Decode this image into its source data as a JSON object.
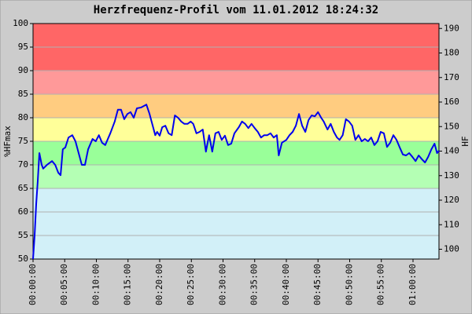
{
  "chart_data": {
    "type": "line",
    "title": "Herzfrequenz-Profil vom 11.01.2012 18:24:32",
    "ylabel": "%HFmax",
    "y2label": "HF",
    "xlim": [
      0,
      64.1
    ],
    "ylim": [
      50,
      100
    ],
    "y2lim": [
      96,
      192
    ],
    "yticks": [
      50,
      55,
      60,
      65,
      70,
      75,
      80,
      85,
      90,
      95,
      100
    ],
    "y2ticks": [
      100,
      110,
      120,
      130,
      140,
      150,
      160,
      170,
      180,
      190
    ],
    "xticks": [
      {
        "value": 0,
        "label": "00:00:00"
      },
      {
        "value": 5,
        "label": "00:05:00"
      },
      {
        "value": 10,
        "label": "00:10:00"
      },
      {
        "value": 15,
        "label": "00:15:00"
      },
      {
        "value": 20,
        "label": "00:20:00"
      },
      {
        "value": 25,
        "label": "00:25:00"
      },
      {
        "value": 30,
        "label": "00:30:00"
      },
      {
        "value": 35,
        "label": "00:35:00"
      },
      {
        "value": 40,
        "label": "00:40:00"
      },
      {
        "value": 45,
        "label": "00:45:00"
      },
      {
        "value": 50,
        "label": "00:50:00"
      },
      {
        "value": 55,
        "label": "00:55:00"
      },
      {
        "value": 60,
        "label": "01:00:00"
      }
    ],
    "grid": true,
    "zones": [
      {
        "from": 50,
        "to": 65,
        "color": "#d2f0f8"
      },
      {
        "from": 65,
        "to": 70,
        "color": "#b4ffb4"
      },
      {
        "from": 70,
        "to": 75,
        "color": "#99ff99"
      },
      {
        "from": 75,
        "to": 80,
        "color": "#ffff99"
      },
      {
        "from": 80,
        "to": 85,
        "color": "#ffcc80"
      },
      {
        "from": 85,
        "to": 90,
        "color": "#ff9999"
      },
      {
        "from": 90,
        "to": 100,
        "color": "#ff6666"
      }
    ],
    "x": [
      0,
      0.25,
      0.5,
      0.75,
      1.0,
      1.37,
      1.6,
      2.2,
      3.0,
      3.5,
      4.0,
      4.35,
      4.7,
      5.1,
      5.6,
      6.2,
      6.7,
      7.2,
      7.7,
      8.2,
      8.7,
      9.4,
      9.9,
      10.4,
      10.9,
      11.4,
      12.2,
      12.9,
      13.4,
      13.9,
      14.4,
      14.9,
      15.4,
      15.9,
      16.4,
      17.1,
      17.9,
      18.4,
      18.9,
      19.3,
      19.6,
      20.0,
      20.4,
      20.9,
      21.4,
      21.9,
      22.4,
      22.9,
      23.4,
      23.9,
      24.4,
      24.9,
      25.3,
      25.8,
      26.3,
      26.8,
      27.3,
      27.8,
      28.3,
      28.8,
      29.3,
      29.8,
      30.3,
      30.8,
      31.3,
      31.8,
      32.5,
      33.0,
      33.5,
      34.0,
      34.5,
      35.0,
      35.5,
      36.0,
      36.5,
      37.0,
      37.5,
      38.0,
      38.5,
      38.8,
      39.3,
      40.0,
      40.5,
      41.0,
      41.5,
      42.0,
      42.5,
      43.0,
      43.5,
      44.0,
      44.5,
      45.0,
      45.5,
      45.9,
      46.5,
      47.0,
      47.5,
      48.0,
      48.4,
      48.9,
      49.4,
      49.9,
      50.4,
      50.9,
      51.4,
      51.9,
      52.4,
      52.9,
      53.4,
      53.9,
      54.4,
      54.9,
      55.4,
      55.9,
      56.4,
      56.9,
      57.4,
      57.9,
      58.4,
      58.9,
      59.4,
      59.9,
      60.4,
      60.9,
      61.4,
      61.9,
      62.4,
      62.9,
      63.4,
      63.8,
      64.1
    ],
    "series": [
      {
        "color": "#0000ee",
        "values": [
          50,
          55,
          61.7,
          66.7,
          72.5,
          70,
          69.2,
          70,
          70.8,
          70,
          68.3,
          67.8,
          73.3,
          73.7,
          75.8,
          76.3,
          75,
          72.5,
          70,
          70,
          73.3,
          75.5,
          75,
          76.3,
          74.7,
          74.2,
          76.7,
          79.2,
          81.7,
          81.7,
          79.7,
          80.8,
          81.2,
          80,
          82,
          82.2,
          82.8,
          80.8,
          78.3,
          76.3,
          77,
          76.2,
          78,
          78.3,
          76.7,
          76.3,
          80.5,
          80,
          79.2,
          78.7,
          78.7,
          79.2,
          78.7,
          76.7,
          77,
          77.5,
          72.8,
          76.3,
          72.8,
          76.7,
          77,
          75.3,
          76.2,
          74.2,
          74.5,
          76.7,
          78,
          79.2,
          78.7,
          77.8,
          78.7,
          77.8,
          77,
          75.8,
          76.3,
          76.3,
          76.7,
          75.8,
          76.3,
          72,
          74.7,
          75.3,
          76.3,
          77,
          78.3,
          80.8,
          78.3,
          77,
          79.5,
          80.5,
          80.3,
          81.2,
          80,
          79.2,
          77.5,
          78.7,
          77,
          75.8,
          75.3,
          76.3,
          79.7,
          79.2,
          78.3,
          75.3,
          76.3,
          75,
          75.5,
          75,
          75.8,
          74.2,
          75,
          77,
          76.7,
          73.8,
          74.7,
          76.3,
          75.3,
          73.7,
          72.2,
          72,
          72.5,
          71.7,
          70.8,
          72,
          71.2,
          70.5,
          71.7,
          73.3,
          74.5,
          72.5,
          73
        ]
      }
    ]
  }
}
